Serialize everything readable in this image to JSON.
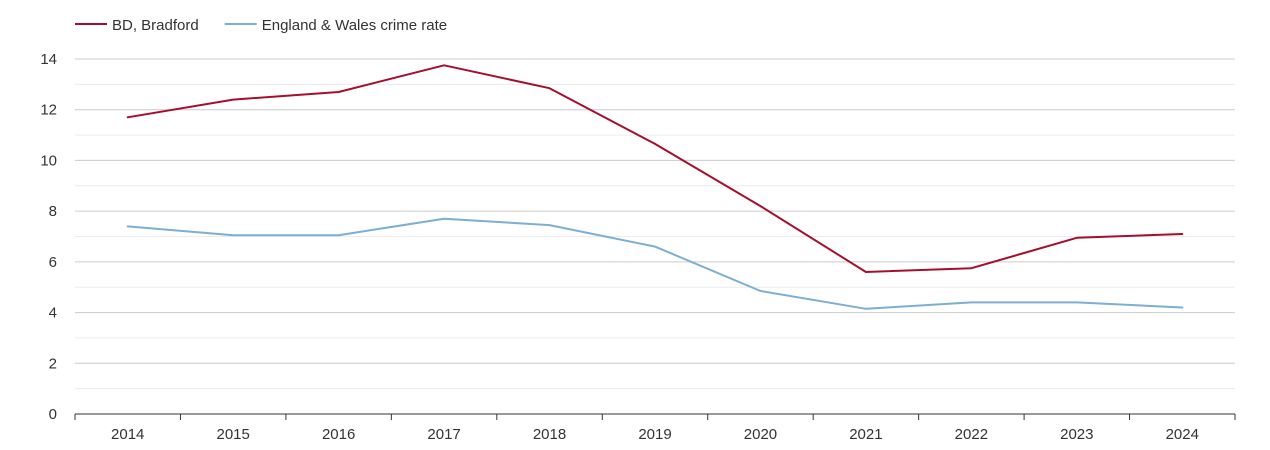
{
  "chart_data": {
    "type": "line",
    "title": "",
    "xlabel": "",
    "ylabel": "",
    "x": [
      "2014",
      "2015",
      "2016",
      "2017",
      "2018",
      "2019",
      "2020",
      "2021",
      "2022",
      "2023",
      "2024"
    ],
    "ylim": [
      0,
      14
    ],
    "yticks": [
      "0",
      "2",
      "4",
      "6",
      "8",
      "10",
      "12",
      "14"
    ],
    "grid": true,
    "legend": "top-left",
    "series": [
      {
        "name": "BD, Bradford",
        "color": "#a50f2d",
        "values": [
          11.7,
          12.4,
          12.7,
          13.75,
          12.85,
          10.65,
          8.2,
          5.6,
          5.75,
          6.95,
          7.1
        ]
      },
      {
        "name": "England & Wales crime rate",
        "color": "#7bafd4",
        "values": [
          7.4,
          7.05,
          7.05,
          7.7,
          7.45,
          6.6,
          4.85,
          4.15,
          4.4,
          4.4,
          4.2
        ]
      }
    ]
  }
}
